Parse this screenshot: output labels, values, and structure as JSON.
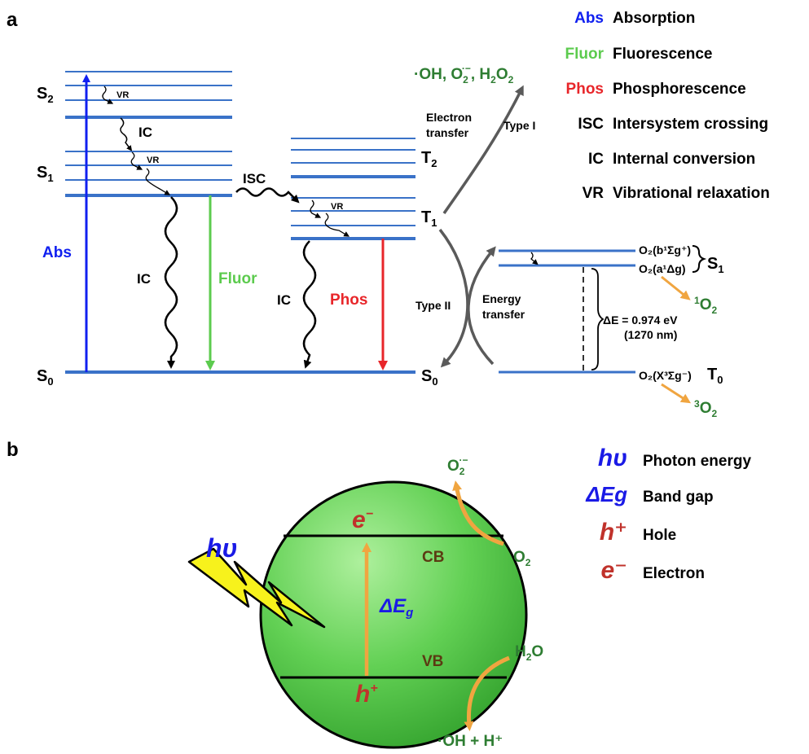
{
  "panels": {
    "a": "a",
    "b": "b"
  },
  "colors": {
    "level": "#3a72c8",
    "abs": "#1020f0",
    "fluor": "#5ccb4e",
    "phos": "#e8262a",
    "gray": "#5a5a5a",
    "orange": "#f0a540",
    "species": "#2e7d32",
    "sphere": "#57c84a",
    "bolt": "#f7f21c",
    "hv": "#1a1ae6",
    "eh": "#c0322b"
  },
  "jablonski": {
    "levels": {
      "S2": "S",
      "S2_sub": "2",
      "S1": "S",
      "S1_sub": "1",
      "S0": "S",
      "S0_sub": "0",
      "T2": "T",
      "T2_sub": "2",
      "T1": "T",
      "T1_sub": "1",
      "S0_right": "S",
      "S0_right_sub": "0"
    },
    "vr": "VR",
    "ic": "IC",
    "isc": "ISC",
    "abs": "Abs",
    "fluor": "Fluor",
    "phos": "Phos",
    "electron_transfer": [
      "Electron",
      "transfer"
    ],
    "type1": "Type I",
    "type2": "Type II",
    "energy_transfer": [
      "Energy",
      "transfer"
    ],
    "ros_products": [
      "·OH, O",
      "2",
      "·−",
      ", H",
      "2",
      "O",
      "2"
    ],
    "oxygen": {
      "b_state": "O₂(b¹Σg⁺)",
      "a_state": "O₂(a¹Δg)",
      "x_state": "O₂(X³Σg⁻)",
      "S1": "S",
      "S1_sub": "1",
      "T0": "T",
      "T0_sub": "0",
      "delta_e": "ΔE = 0.974 eV",
      "wavelength": "(1270 nm)",
      "singlet_product": [
        "1",
        "O",
        "2"
      ],
      "triplet_product": [
        "3",
        "O",
        "2"
      ]
    }
  },
  "legend_a": [
    {
      "abbr": "Abs",
      "text": "Absorption",
      "color": "#1020f0"
    },
    {
      "abbr": "Fluor",
      "text": "Fluorescence",
      "color": "#5ccb4e"
    },
    {
      "abbr": "Phos",
      "text": "Phosphorescence",
      "color": "#e8262a"
    },
    {
      "abbr": "ISC",
      "text": "Intersystem crossing",
      "color": "#000000"
    },
    {
      "abbr": "IC",
      "text": "Internal conversion",
      "color": "#000000"
    },
    {
      "abbr": "VR",
      "text": "Vibrational relaxation",
      "color": "#000000"
    }
  ],
  "photocatalyst": {
    "hv": "hυ",
    "cb": "CB",
    "vb": "VB",
    "e": "e",
    "e_sup": "−",
    "h": "h",
    "h_sup": "+",
    "delta_eg": "ΔE",
    "delta_eg_sub": "g",
    "o2_superoxide": [
      "O",
      "2",
      "·−"
    ],
    "o2": [
      "O",
      "2"
    ],
    "h2o": [
      "H",
      "2",
      "O"
    ],
    "oh_h": "·OH + H⁺"
  },
  "legend_b": [
    {
      "symbol": "hυ",
      "text": "Photon energy",
      "color": "#1a1ae6"
    },
    {
      "symbol": "ΔEg",
      "text": "Band gap",
      "color": "#1a1ae6"
    },
    {
      "symbol": "h⁺",
      "text": "Hole",
      "color": "#c0322b"
    },
    {
      "symbol": "e⁻",
      "text": "Electron",
      "color": "#c0322b"
    }
  ]
}
